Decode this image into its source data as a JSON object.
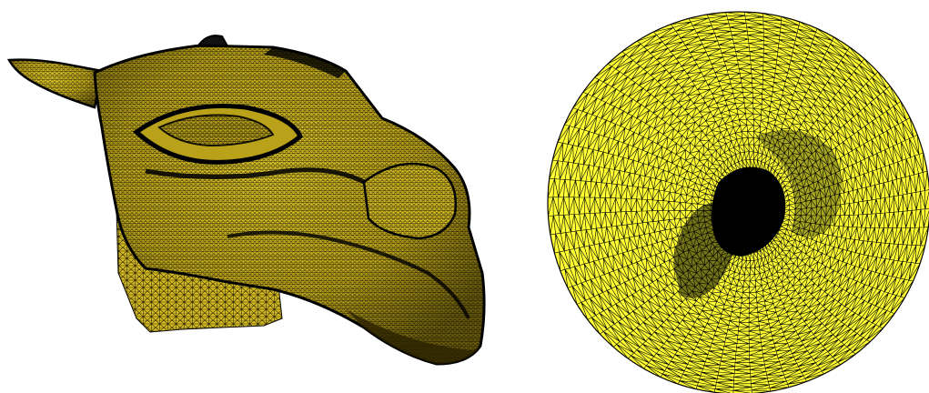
{
  "figure": {
    "panels": [
      {
        "id": "mesh-3d",
        "subject": "camel-head",
        "element": "triangle"
      },
      {
        "id": "mesh-param",
        "subject": "disk-parameterization",
        "element": "triangle"
      }
    ]
  },
  "colors": {
    "background": "#ffffff",
    "mesh_fill_3d": "#c9b320",
    "mesh_fill_3d_light": "#e3cc2a",
    "mesh_fill_3d_dark": "#6e5f0c",
    "mesh_fill_disk": "#ffff33",
    "edge": "#000000"
  }
}
